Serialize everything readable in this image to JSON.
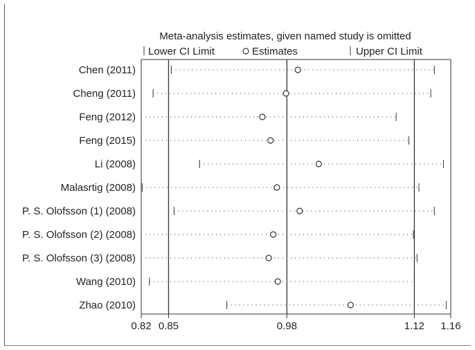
{
  "chart_data": {
    "type": "forest",
    "title": "Meta-analysis estimates, given named study is omitted",
    "legend": {
      "lower": "Lower CI Limit",
      "estimate": "Estimates",
      "upper": "Upper CI Limit",
      "placement": "top"
    },
    "xlim": [
      0.82,
      1.16
    ],
    "ticks": [
      {
        "value": 0.82,
        "label": "0.82"
      },
      {
        "value": 0.85,
        "label": "0.85"
      },
      {
        "value": 0.98,
        "label": "0.98"
      },
      {
        "value": 1.12,
        "label": "1.12"
      },
      {
        "value": 1.16,
        "label": "1.16"
      }
    ],
    "reference_lines": [
      0.85,
      0.98,
      1.12
    ],
    "studies": [
      {
        "name": "Chen (2011)",
        "lower": 0.853,
        "estimate": 0.992,
        "upper": 1.142
      },
      {
        "name": "Cheng (2011)",
        "lower": 0.833,
        "estimate": 0.979,
        "upper": 1.138
      },
      {
        "name": "Feng (2012)",
        "lower": 0.82,
        "estimate": 0.953,
        "upper": 1.1
      },
      {
        "name": "Feng (2015)",
        "lower": null,
        "estimate": 0.962,
        "upper": 1.114
      },
      {
        "name": "Li (2008)",
        "lower": 0.884,
        "estimate": 1.015,
        "upper": 1.152
      },
      {
        "name": "Malasrtig (2008)",
        "lower": 0.821,
        "estimate": 0.969,
        "upper": 1.125
      },
      {
        "name": "P. S. Olofsson (1) (2008)",
        "lower": 0.856,
        "estimate": 0.994,
        "upper": 1.142
      },
      {
        "name": "P. S. Olofsson (2) (2008)",
        "lower": null,
        "estimate": 0.965,
        "upper": 1.119
      },
      {
        "name": "P. S. Olofsson (3) (2008)",
        "lower": 0.82,
        "estimate": 0.96,
        "upper": 1.123
      },
      {
        "name": "Wang (2010)",
        "lower": 0.829,
        "estimate": 0.97,
        "upper": 1.12
      },
      {
        "name": "Zhao (2010)",
        "lower": 0.914,
        "estimate": 1.05,
        "upper": 1.155
      }
    ],
    "grid": false
  }
}
